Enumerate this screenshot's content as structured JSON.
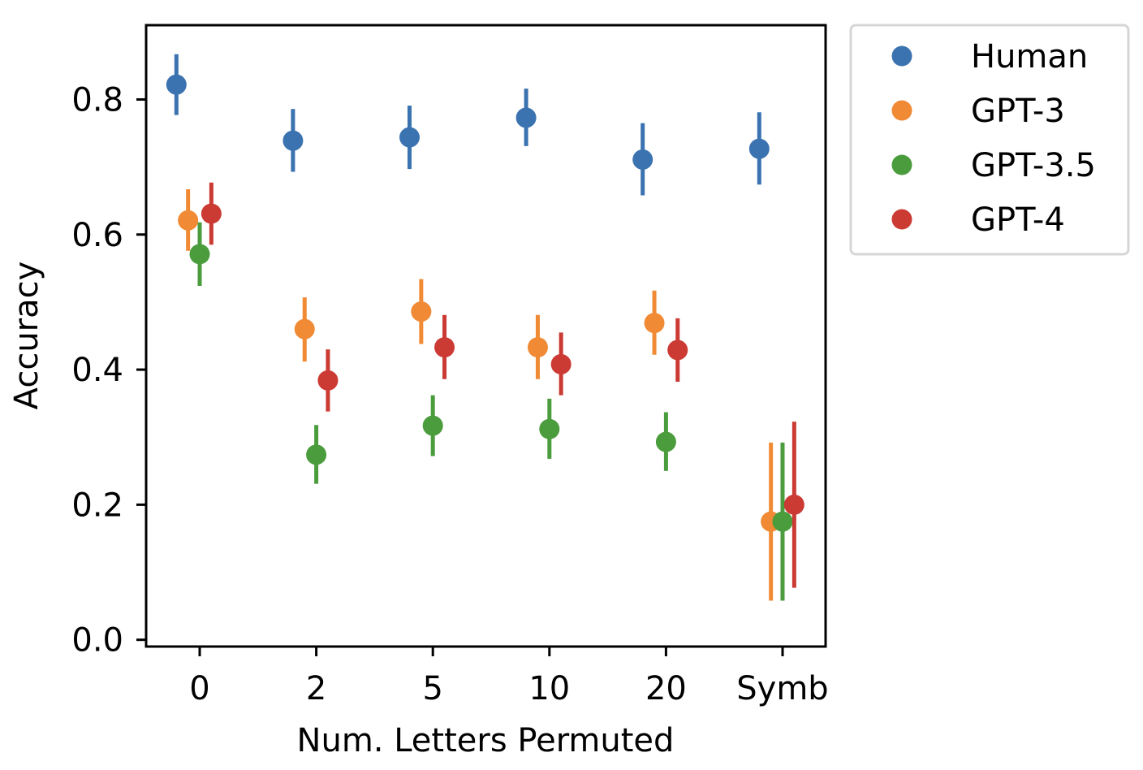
{
  "chart_data": {
    "type": "scatter",
    "xlabel": "Num. Letters Permuted",
    "ylabel": "Accuracy",
    "categories": [
      "0",
      "2",
      "5",
      "10",
      "20",
      "Symb"
    ],
    "ylim": [
      -0.01,
      0.91
    ],
    "yticks": [
      "0.0",
      "0.2",
      "0.4",
      "0.6",
      "0.8"
    ],
    "legend_position": "outside-top-right",
    "grid": false,
    "series": [
      {
        "name": "Human",
        "color": "#3b73b1",
        "values": [
          0.822,
          0.739,
          0.744,
          0.773,
          0.711,
          0.727
        ],
        "err_low": [
          0.777,
          0.693,
          0.697,
          0.731,
          0.658,
          0.674
        ],
        "err_high": [
          0.867,
          0.786,
          0.791,
          0.816,
          0.765,
          0.781
        ]
      },
      {
        "name": "GPT-3",
        "color": "#f08a34",
        "values": [
          0.621,
          0.46,
          0.486,
          0.433,
          0.469,
          0.175
        ],
        "err_low": [
          0.576,
          0.412,
          0.438,
          0.386,
          0.422,
          0.058
        ],
        "err_high": [
          0.667,
          0.507,
          0.534,
          0.481,
          0.517,
          0.292
        ]
      },
      {
        "name": "GPT-3.5",
        "color": "#4a9c3c",
        "values": [
          0.571,
          0.274,
          0.317,
          0.312,
          0.293,
          0.175
        ],
        "err_low": [
          0.524,
          0.231,
          0.272,
          0.268,
          0.25,
          0.058
        ],
        "err_high": [
          0.618,
          0.318,
          0.362,
          0.357,
          0.337,
          0.292
        ]
      },
      {
        "name": "GPT-4",
        "color": "#cb3a33",
        "values": [
          0.631,
          0.384,
          0.433,
          0.408,
          0.429,
          0.2
        ],
        "err_low": [
          0.585,
          0.338,
          0.386,
          0.362,
          0.382,
          0.077
        ],
        "err_high": [
          0.677,
          0.43,
          0.481,
          0.455,
          0.476,
          0.323
        ]
      }
    ]
  }
}
